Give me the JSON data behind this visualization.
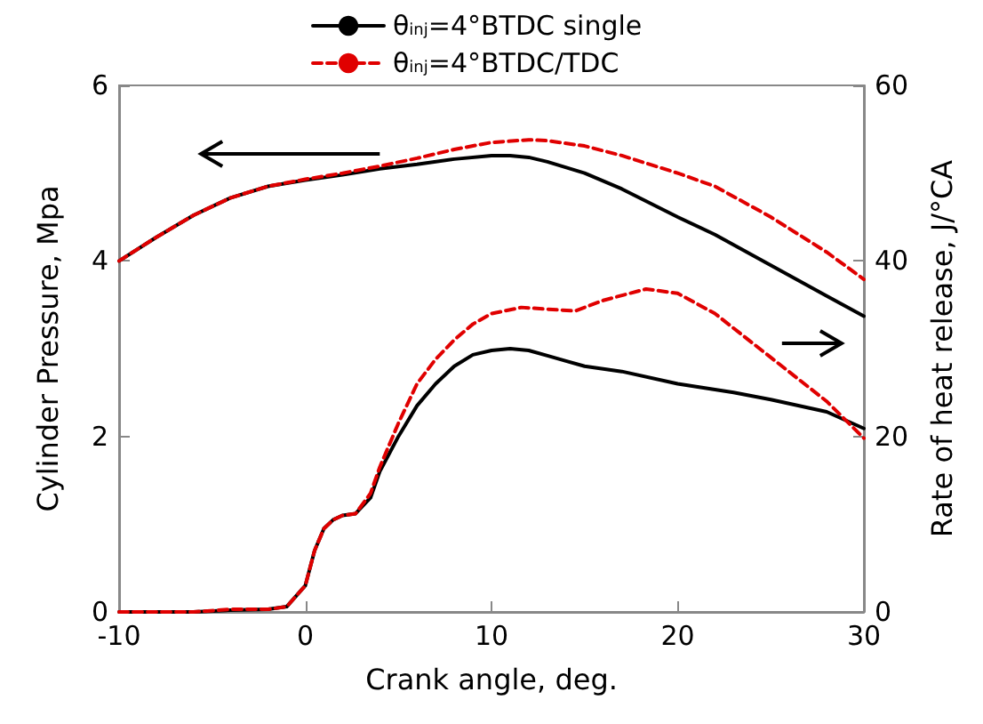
{
  "chart_data": {
    "type": "line",
    "xlabel": "Crank angle, deg.",
    "ylabel": "Cylinder Pressure, Mpa",
    "y2label": "Rate of heat release, J/°CA",
    "xlim": [
      -10,
      30
    ],
    "xticks": [
      -10,
      0,
      10,
      20,
      30
    ],
    "ylim": [
      0,
      6
    ],
    "yticks": [
      0,
      2,
      4,
      6
    ],
    "y2lim": [
      0,
      60
    ],
    "y2ticks": [
      0,
      20,
      40,
      60
    ],
    "grid": false,
    "legend": "top",
    "marker": "none",
    "series": [
      {
        "name": "θ$_{inj}$=4°BTDC single",
        "color": "#000000",
        "line_style": "solid",
        "x": [
          -10,
          -8,
          -6,
          -4,
          -2,
          0,
          2,
          4,
          6,
          8,
          10,
          11,
          12,
          13,
          15,
          17,
          20,
          22,
          25,
          28,
          30
        ],
        "values": [
          4.0,
          4.27,
          4.52,
          4.72,
          4.85,
          4.92,
          4.98,
          5.05,
          5.1,
          5.16,
          5.2,
          5.2,
          5.18,
          5.13,
          5.0,
          4.82,
          4.5,
          4.3,
          3.95,
          3.6,
          3.37
        ]
      },
      {
        "name": "θ$_{inj}$=4°BTDC/TDC",
        "color": "#e00000",
        "line_style": "dashed",
        "x": [
          -10,
          -8,
          -6,
          -4,
          -2,
          0,
          2,
          4,
          6,
          8,
          10,
          12,
          13,
          15,
          17,
          20,
          22,
          25,
          28,
          30
        ],
        "values": [
          4.0,
          4.27,
          4.52,
          4.72,
          4.85,
          4.93,
          5.0,
          5.08,
          5.17,
          5.27,
          5.35,
          5.38,
          5.37,
          5.31,
          5.2,
          5.0,
          4.85,
          4.5,
          4.1,
          3.79
        ]
      },
      {
        "color": "#000000",
        "line_style": "solid",
        "axis": "y2",
        "x": [
          -10,
          -6,
          -4,
          -2,
          -1,
          0,
          0.5,
          1,
          1.5,
          2,
          2.7,
          3.5,
          4,
          5,
          6,
          7,
          8,
          9,
          10,
          11,
          12,
          13,
          14,
          15,
          17,
          20,
          23,
          25,
          28,
          30
        ],
        "values": [
          0,
          0,
          0.2,
          0.3,
          0.6,
          3,
          7,
          9.5,
          10.5,
          11,
          11.2,
          13,
          16,
          20,
          23.5,
          26,
          28,
          29.3,
          29.8,
          30,
          29.8,
          29.2,
          28.6,
          28,
          27.4,
          26,
          25,
          24.2,
          22.8,
          20.9
        ]
      },
      {
        "color": "#e00000",
        "line_style": "dashed",
        "axis": "y2",
        "x": [
          -10,
          -6,
          -4,
          -2,
          -1,
          0,
          0.5,
          1,
          1.5,
          2,
          2.7,
          3.5,
          4,
          5,
          6,
          7,
          8,
          9,
          10,
          11.6,
          13,
          14.5,
          16,
          18.3,
          20,
          22,
          25,
          28,
          30
        ],
        "values": [
          0,
          0,
          0.3,
          0.3,
          0.6,
          3,
          7,
          9.5,
          10.5,
          11,
          11.2,
          13.5,
          16.5,
          21.5,
          26,
          28.8,
          31,
          32.8,
          34,
          34.7,
          34.5,
          34.3,
          35.5,
          36.8,
          36.3,
          34,
          29,
          24,
          19.8
        ]
      }
    ]
  }
}
